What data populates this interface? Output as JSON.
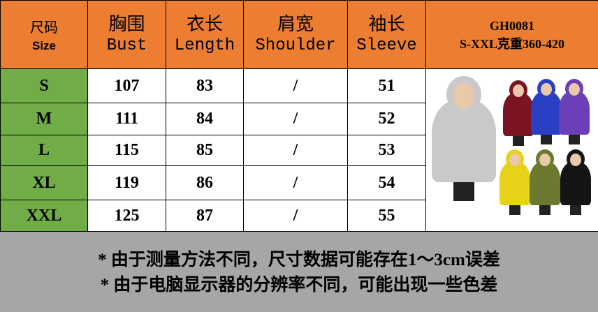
{
  "header": {
    "size": {
      "cn": "尺码",
      "en": "Size"
    },
    "bust": {
      "cn": "胸围",
      "en": "Bust"
    },
    "length": {
      "cn": "衣长",
      "en": "Length"
    },
    "shoulder": {
      "cn": "肩宽",
      "en": "Shoulder"
    },
    "sleeve": {
      "cn": "袖长",
      "en": "Sleeve"
    },
    "product": {
      "code": "GH0081",
      "weight": "S-XXL克重360-420"
    }
  },
  "rows": [
    {
      "size": "S",
      "bust": "107",
      "length": "83",
      "shoulder": "/",
      "sleeve": "51"
    },
    {
      "size": "M",
      "bust": "111",
      "length": "84",
      "shoulder": "/",
      "sleeve": "52"
    },
    {
      "size": "L",
      "bust": "115",
      "length": "85",
      "shoulder": "/",
      "sleeve": "53"
    },
    {
      "size": "XL",
      "bust": "119",
      "length": "86",
      "shoulder": "/",
      "sleeve": "54"
    },
    {
      "size": "XXL",
      "bust": "125",
      "length": "87",
      "shoulder": "/",
      "sleeve": "55"
    }
  ],
  "colors": {
    "header": "#ed7d31",
    "size_column": "#70ad47",
    "footer": "#a6a6a6"
  },
  "photo_colors": [
    "#c9c9c9",
    "#7a1422",
    "#2b3fc4",
    "#6a3fb8",
    "#e6d21a",
    "#6b7a2e",
    "#151515"
  ],
  "notes": [
    "* 由于测量方法不同，尺寸数据可能存在1～3cm误差",
    "* 由于电脑显示器的分辨率不同，可能出现一些色差"
  ]
}
